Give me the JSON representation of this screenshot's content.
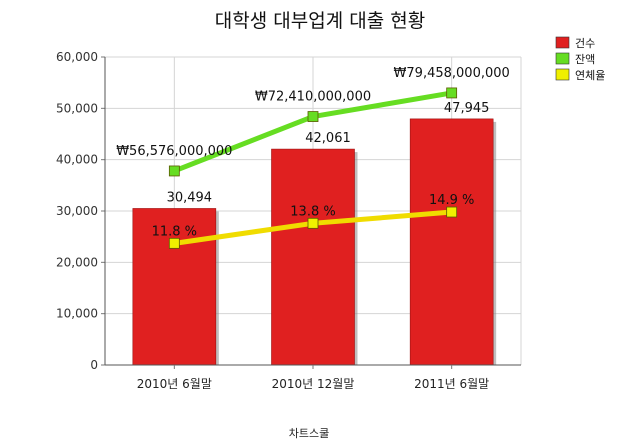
{
  "chart_data": {
    "type": "bar",
    "title": "대학생 대부업계 대출 현황",
    "footer": "차트스쿨",
    "categories": [
      "2010년 6월말",
      "2010년 12월말",
      "2011년 6월말"
    ],
    "ylim": [
      0,
      60000
    ],
    "y_ticks": [
      "0",
      "10,000",
      "20,000",
      "30,000",
      "40,000",
      "50,000",
      "60,000"
    ],
    "grid": true,
    "legend_position": "top-right",
    "series": [
      {
        "name": "건수",
        "kind": "bar",
        "color": "#e02020",
        "values": [
          30494,
          42061,
          47945
        ],
        "labels": [
          "30,494",
          "42,061",
          "47,945"
        ]
      },
      {
        "name": "잔액",
        "kind": "line",
        "color": "#66dd22",
        "marker_color": "#66dd22",
        "values": [
          37800,
          48400,
          53000
        ],
        "labels": [
          "₩56,576,000,000",
          "₩72,410,000,000",
          "₩79,458,000,000"
        ]
      },
      {
        "name": "연체율",
        "kind": "line",
        "color": "#f0dc00",
        "marker_color": "#f0f000",
        "values": [
          23700,
          27600,
          29800
        ],
        "labels": [
          "11.8 %",
          "13.8 %",
          "14.9 %"
        ]
      }
    ]
  }
}
